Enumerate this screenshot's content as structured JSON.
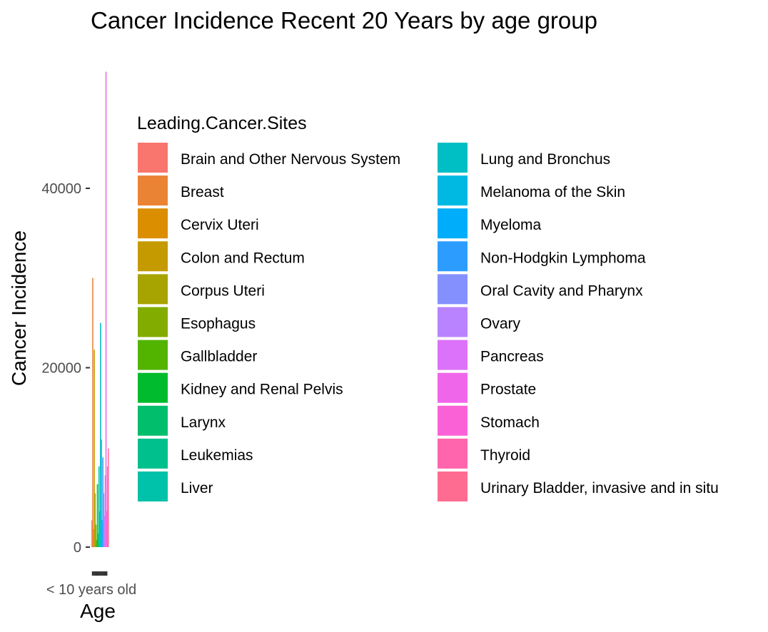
{
  "chart_data": {
    "type": "bar",
    "title": "Cancer Incidence Recent 20 Years by age group",
    "xlabel": "Age",
    "ylabel": "Cancer Incidence",
    "ylim": [
      0,
      55000
    ],
    "y_ticks": [
      0,
      20000,
      40000
    ],
    "y_tick_labels": [
      "0",
      "20000",
      "40000"
    ],
    "x_tick_labels_visible": [
      "< 10 years old"
    ],
    "grid": false,
    "legend": {
      "title": "Leading.Cancer.Sites",
      "placement": "right",
      "columns": 2
    },
    "stacked": true,
    "series": [
      {
        "name": "Brain and Other Nervous System",
        "color": "#F8766D",
        "value": 3000
      },
      {
        "name": "Breast",
        "color": "#EB8335",
        "value": 30000
      },
      {
        "name": "Cervix Uteri",
        "color": "#DB8E00",
        "value": 2000
      },
      {
        "name": "Colon and Rectum",
        "color": "#C49A00",
        "value": 22000
      },
      {
        "name": "Corpus Uteri",
        "color": "#A7A300",
        "value": 6000
      },
      {
        "name": "Esophagus",
        "color": "#82AC00",
        "value": 2500
      },
      {
        "name": "Gallbladder",
        "color": "#53B400",
        "value": 800
      },
      {
        "name": "Kidney and Renal Pelvis",
        "color": "#00BB2E",
        "value": 7000
      },
      {
        "name": "Larynx",
        "color": "#00BE6C",
        "value": 1500
      },
      {
        "name": "Leukemias",
        "color": "#00C08E",
        "value": 9000
      },
      {
        "name": "Liver",
        "color": "#00C1A9",
        "value": 4000
      },
      {
        "name": "Lung and Bronchus",
        "color": "#00BFC4",
        "value": 25000
      },
      {
        "name": "Melanoma of the Skin",
        "color": "#00B9E3",
        "value": 12000
      },
      {
        "name": "Myeloma",
        "color": "#00ADFA",
        "value": 3000
      },
      {
        "name": "Non-Hodgkin Lymphoma",
        "color": "#2D9CFF",
        "value": 10000
      },
      {
        "name": "Oral Cavity and Pharynx",
        "color": "#8590FF",
        "value": 6000
      },
      {
        "name": "Ovary",
        "color": "#B983FF",
        "value": 3500
      },
      {
        "name": "Pancreas",
        "color": "#DC71FA",
        "value": 8000
      },
      {
        "name": "Prostate",
        "color": "#F066EA",
        "value": 53000
      },
      {
        "name": "Stomach",
        "color": "#FB61D7",
        "value": 4000
      },
      {
        "name": "Thyroid",
        "color": "#FF65AC",
        "value": 9000
      },
      {
        "name": "Urinary Bladder, invasive and in situ",
        "color": "#FF6C91",
        "value": 11000
      }
    ]
  }
}
